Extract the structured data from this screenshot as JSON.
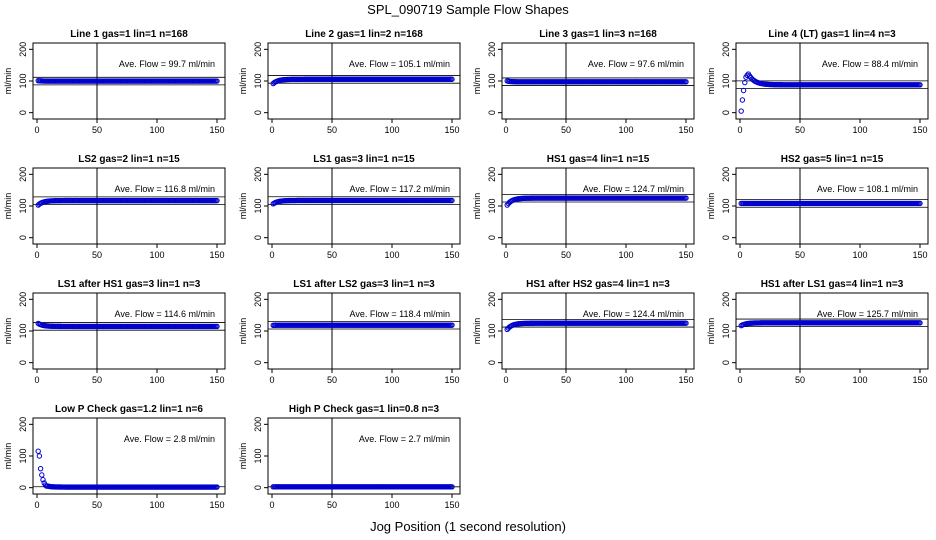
{
  "figure": {
    "title": "SPL_090719  Sample Flow Shapes",
    "xlabel": "Jog Position (1 second resolution)"
  },
  "chart_data": [
    {
      "type": "scatter",
      "title": "Line 1 gas=1 lin=1 n=168",
      "ylabel": "ml/min",
      "xlim": [
        0,
        150
      ],
      "ylim": [
        -20,
        220
      ],
      "xticks": [
        0,
        50,
        100,
        150
      ],
      "yticks": [
        0,
        100,
        200
      ],
      "annotation": "Ave. Flow =  99.7  ml/min",
      "mean": 99.7,
      "vline": 50,
      "shape": {
        "kind": "flat",
        "start": 101,
        "plateau": 99.7
      }
    },
    {
      "type": "scatter",
      "title": "Line 2 gas=1 lin=2 n=168",
      "ylabel": "ml/min",
      "xlim": [
        0,
        150
      ],
      "ylim": [
        -20,
        220
      ],
      "xticks": [
        0,
        50,
        100,
        150
      ],
      "yticks": [
        0,
        100,
        200
      ],
      "annotation": "Ave. Flow =  105.1  ml/min",
      "mean": 105.1,
      "vline": 50,
      "shape": {
        "kind": "rise",
        "start": 92,
        "plateau": 105.5,
        "tau": 4
      }
    },
    {
      "type": "scatter",
      "title": "Line 3 gas=1 lin=3 n=168",
      "ylabel": "ml/min",
      "xlim": [
        0,
        150
      ],
      "ylim": [
        -20,
        220
      ],
      "xticks": [
        0,
        50,
        100,
        150
      ],
      "yticks": [
        0,
        100,
        200
      ],
      "annotation": "Ave. Flow =  97.6  ml/min",
      "mean": 97.6,
      "vline": 50,
      "shape": {
        "kind": "flat",
        "start": 100,
        "plateau": 97.4
      }
    },
    {
      "type": "scatter",
      "title": "Line 4 (LT) gas=1 lin=4 n=3",
      "ylabel": "ml/min",
      "xlim": [
        0,
        150
      ],
      "ylim": [
        -20,
        220
      ],
      "xticks": [
        0,
        50,
        100,
        150
      ],
      "yticks": [
        0,
        100,
        200
      ],
      "annotation": "Ave. Flow =  88.4  ml/min",
      "mean": 88.4,
      "vline": 50,
      "shape": {
        "kind": "overshoot",
        "plateau": 88,
        "peak": 122,
        "points": [
          [
            1,
            5
          ],
          [
            2,
            40
          ],
          [
            3,
            70
          ],
          [
            4,
            95
          ],
          [
            5,
            112
          ],
          [
            6,
            118
          ]
        ]
      }
    },
    {
      "type": "scatter",
      "title": "LS2 gas=2 lin=1 n=15",
      "ylabel": "ml/min",
      "xlim": [
        0,
        150
      ],
      "ylim": [
        -20,
        220
      ],
      "xticks": [
        0,
        50,
        100,
        150
      ],
      "yticks": [
        0,
        100,
        200
      ],
      "annotation": "Ave. Flow =  116.8  ml/min",
      "mean": 116.8,
      "vline": 50,
      "shape": {
        "kind": "rise",
        "start": 103,
        "plateau": 117,
        "tau": 4
      }
    },
    {
      "type": "scatter",
      "title": "LS1 gas=3 lin=1 n=15",
      "ylabel": "ml/min",
      "xlim": [
        0,
        150
      ],
      "ylim": [
        -20,
        220
      ],
      "xticks": [
        0,
        50,
        100,
        150
      ],
      "yticks": [
        0,
        100,
        200
      ],
      "annotation": "Ave. Flow =  117.2  ml/min",
      "mean": 117.2,
      "vline": 50,
      "shape": {
        "kind": "rise",
        "start": 107,
        "plateau": 117.4,
        "tau": 4
      }
    },
    {
      "type": "scatter",
      "title": "HS1 gas=4 lin=1 n=15",
      "ylabel": "ml/min",
      "xlim": [
        0,
        150
      ],
      "ylim": [
        -20,
        220
      ],
      "xticks": [
        0,
        50,
        100,
        150
      ],
      "yticks": [
        0,
        100,
        200
      ],
      "annotation": "Ave. Flow =  124.7  ml/min",
      "mean": 124.7,
      "vline": 50,
      "shape": {
        "kind": "rise",
        "start": 103,
        "plateau": 125,
        "tau": 4
      }
    },
    {
      "type": "scatter",
      "title": "HS2 gas=5 lin=1 n=15",
      "ylabel": "ml/min",
      "xlim": [
        0,
        150
      ],
      "ylim": [
        -20,
        220
      ],
      "xticks": [
        0,
        50,
        100,
        150
      ],
      "yticks": [
        0,
        100,
        200
      ],
      "annotation": "Ave. Flow =  108.1  ml/min",
      "mean": 108.1,
      "vline": 50,
      "shape": {
        "kind": "flat",
        "start": 108,
        "plateau": 108.1
      }
    },
    {
      "type": "scatter",
      "title": "LS1 after HS1 gas=3 lin=1 n=3",
      "ylabel": "ml/min",
      "xlim": [
        0,
        150
      ],
      "ylim": [
        -20,
        220
      ],
      "xticks": [
        0,
        50,
        100,
        150
      ],
      "yticks": [
        0,
        100,
        200
      ],
      "annotation": "Ave. Flow =  114.6  ml/min",
      "mean": 114.6,
      "vline": 50,
      "shape": {
        "kind": "rise",
        "start": 124,
        "plateau": 114.5,
        "tau": 4
      }
    },
    {
      "type": "scatter",
      "title": "LS1 after LS2 gas=3 lin=1 n=3",
      "ylabel": "ml/min",
      "xlim": [
        0,
        150
      ],
      "ylim": [
        -20,
        220
      ],
      "xticks": [
        0,
        50,
        100,
        150
      ],
      "yticks": [
        0,
        100,
        200
      ],
      "annotation": "Ave. Flow =  118.4  ml/min",
      "mean": 118.4,
      "vline": 50,
      "shape": {
        "kind": "flat",
        "start": 118,
        "plateau": 118.4
      }
    },
    {
      "type": "scatter",
      "title": "HS1 after HS2 gas=4 lin=1 n=3",
      "ylabel": "ml/min",
      "xlim": [
        0,
        150
      ],
      "ylim": [
        -20,
        220
      ],
      "xticks": [
        0,
        50,
        100,
        150
      ],
      "yticks": [
        0,
        100,
        200
      ],
      "annotation": "Ave. Flow =  124.4  ml/min",
      "mean": 124.4,
      "vline": 50,
      "shape": {
        "kind": "rise",
        "start": 105,
        "plateau": 124.6,
        "tau": 4
      }
    },
    {
      "type": "scatter",
      "title": "HS1 after LS1 gas=4 lin=1 n=3",
      "ylabel": "ml/min",
      "xlim": [
        0,
        150
      ],
      "ylim": [
        -20,
        220
      ],
      "xticks": [
        0,
        50,
        100,
        150
      ],
      "yticks": [
        0,
        100,
        200
      ],
      "annotation": "Ave. Flow =  125.7  ml/min",
      "mean": 125.7,
      "vline": 50,
      "shape": {
        "kind": "rise",
        "start": 117,
        "plateau": 125.8,
        "tau": 4
      }
    },
    {
      "type": "scatter",
      "title": "Low P Check gas=1.2 lin=1 n=6",
      "ylabel": "ml/min",
      "xlim": [
        0,
        150
      ],
      "ylim": [
        -20,
        220
      ],
      "xticks": [
        0,
        50,
        100,
        150
      ],
      "yticks": [
        0,
        100,
        200
      ],
      "annotation": "Ave. Flow =  2.8  ml/min",
      "mean": 2.8,
      "vline": 50,
      "shape": {
        "kind": "decay",
        "plateau": 2,
        "points": [
          [
            1,
            115
          ],
          [
            2,
            100
          ],
          [
            3,
            60
          ],
          [
            4,
            40
          ],
          [
            5,
            25
          ],
          [
            6,
            15
          ],
          [
            7,
            8
          ],
          [
            8,
            5
          ]
        ]
      }
    },
    {
      "type": "scatter",
      "title": "High P Check gas=1 lin=0.8 n=3",
      "ylabel": "ml/min",
      "xlim": [
        0,
        150
      ],
      "ylim": [
        -20,
        220
      ],
      "xticks": [
        0,
        50,
        100,
        150
      ],
      "yticks": [
        0,
        100,
        200
      ],
      "annotation": "Ave. Flow =  2.7  ml/min",
      "mean": 2.7,
      "vline": 50,
      "shape": {
        "kind": "flat",
        "start": 2.7,
        "plateau": 2.7
      }
    }
  ],
  "colors": {
    "points": "#0000cc",
    "axis": "#000000",
    "background": "#ffffff"
  }
}
